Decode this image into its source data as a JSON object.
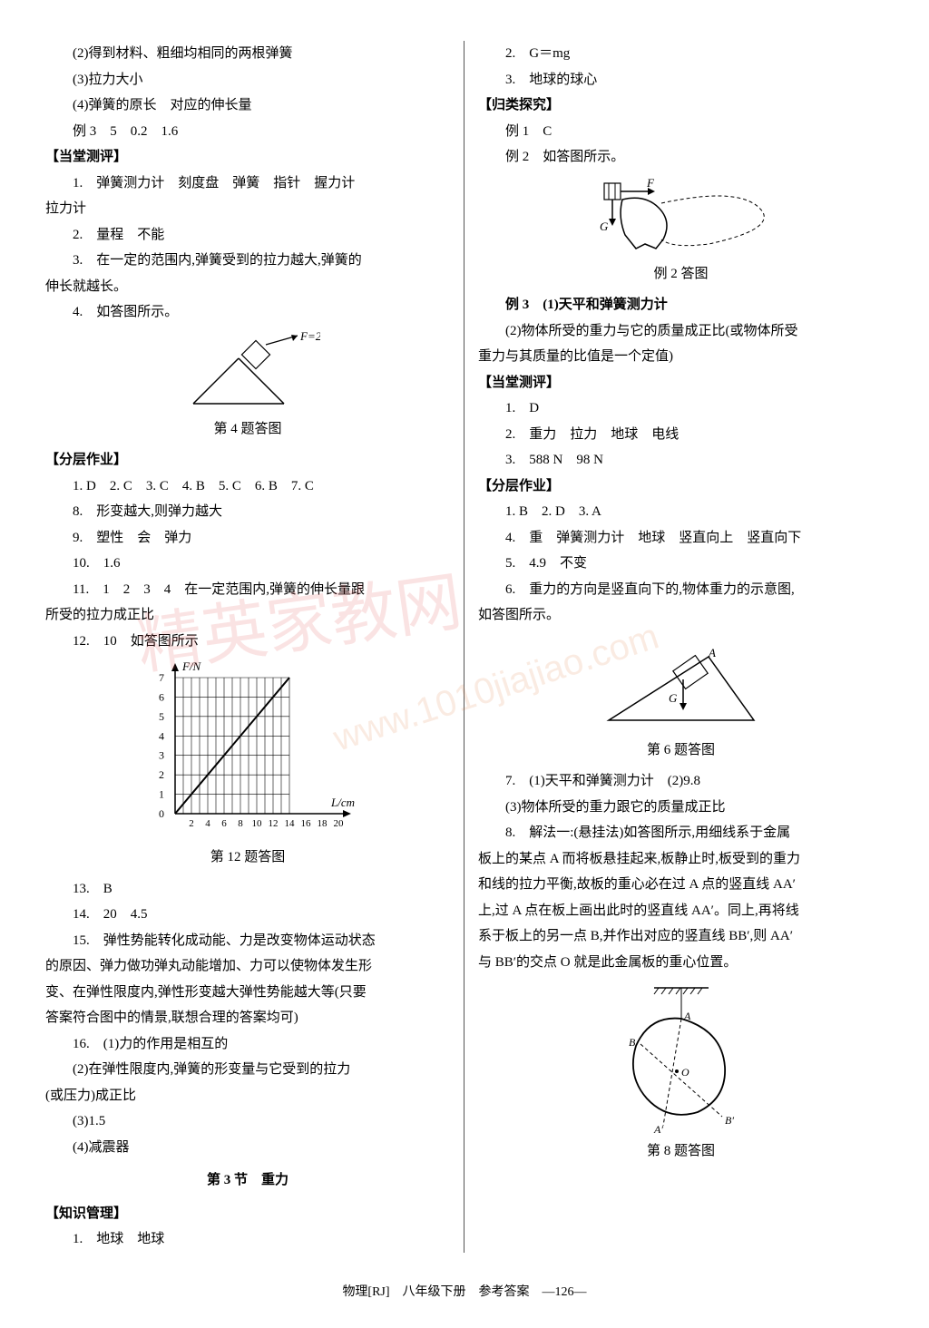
{
  "left": {
    "l1": "(2)得到材料、粗细均相同的两根弹簧",
    "l2": "(3)拉力大小",
    "l3": "(4)弹簧的原长　对应的伸长量",
    "l4": "例 3　5　0.2　1.6",
    "h1": "【当堂测评】",
    "l5": "1.　弹簧测力计　刻度盘　弹簧　指针　握力计",
    "l6": "拉力计",
    "l7": "2.　量程　不能",
    "l8": "3.　在一定的范围内,弹簧受到的拉力越大,弹簧的",
    "l9": "伸长就越长。",
    "l10": "4.　如答图所示。",
    "fig4_label": "F=20 N",
    "fig4_cap": "第 4 题答图",
    "h2": "【分层作业】",
    "l11": "1. D　2. C　3. C　4. B　5. C　6. B　7. C",
    "l12": "8.　形变越大,则弹力越大",
    "l13": "9.　塑性　会　弹力",
    "l14": "10.　1.6",
    "l15": "11.　1　2　3　4　在一定范围内,弹簧的伸长量跟",
    "l16": "所受的拉力成正比",
    "l17": "12.　10　如答图所示",
    "chart12": {
      "ylabel": "F/N",
      "xlabel": "L/cm",
      "y_ticks": [
        0,
        1,
        2,
        3,
        4,
        5,
        6,
        7
      ],
      "x_ticks": [
        2,
        4,
        6,
        8,
        10,
        12,
        14,
        16,
        18,
        20
      ],
      "line_start": [
        0,
        0
      ],
      "line_end": [
        14,
        7
      ],
      "grid_color": "#000",
      "axis_color": "#000",
      "line_color": "#000"
    },
    "fig12_cap": "第 12 题答图",
    "l18": "13.　B",
    "l19": "14.　20　4.5",
    "l20": "15.　弹性势能转化成动能、力是改变物体运动状态",
    "l21": "的原因、弹力做功弹丸动能增加、力可以使物体发生形",
    "l22": "变、在弹性限度内,弹性形变越大弹性势能越大等(只要",
    "l23": "答案符合图中的情景,联想合理的答案均可)",
    "l24": "16.　(1)力的作用是相互的",
    "l25": "(2)在弹性限度内,弹簧的形变量与它受到的拉力",
    "l26": "(或压力)成正比",
    "l27": "(3)1.5",
    "l28": "(4)减震器",
    "sec_title": "第 3 节　重力",
    "h3": "【知识管理】",
    "l29": "1.　地球　地球"
  },
  "right": {
    "r1": "2.　G＝mg",
    "r2": "3.　地球的球心",
    "h4": "【归类探究】",
    "r3": "例 1　C",
    "r4": "例 2　如答图所示。",
    "figex2_cap": "例 2 答图",
    "figex2_F": "F",
    "figex2_G": "G",
    "r5": "例 3　(1)天平和弹簧测力计",
    "r6": "(2)物体所受的重力与它的质量成正比(或物体所受",
    "r7": "重力与其质量的比值是一个定值)",
    "h5": "【当堂测评】",
    "r8": "1.　D",
    "r9": "2.　重力　拉力　地球　电线",
    "r10": "3.　588 N　98 N",
    "h6": "【分层作业】",
    "r11": "1. B　2. D　3. A",
    "r12": "4.　重　弹簧测力计　地球　竖直向上　竖直向下",
    "r13": "5.　4.9　不变",
    "r14": "6.　重力的方向是竖直向下的,物体重力的示意图,",
    "r15": "如答图所示。",
    "fig6_A": "A",
    "fig6_G": "G",
    "fig6_cap": "第 6 题答图",
    "r16": "7.　(1)天平和弹簧测力计　(2)9.8",
    "r17": "(3)物体所受的重力跟它的质量成正比",
    "r18": "8.　解法一:(悬挂法)如答图所示,用细线系于金属",
    "r19": "板上的某点 A 而将板悬挂起来,板静止时,板受到的重力",
    "r20": "和线的拉力平衡,故板的重心必在过 A 点的竖直线 AA′",
    "r21": "上,过 A 点在板上画出此时的竖直线 AA′。同上,再将线",
    "r22": "系于板上的另一点 B,并作出对应的竖直线 BB′,则 AA′",
    "r23": "与 BB′的交点 O 就是此金属板的重心位置。",
    "fig8_cap": "第 8 题答图",
    "fig8_A": "A",
    "fig8_B": "B",
    "fig8_O": "O",
    "fig8_Ap": "A′",
    "fig8_Bp": "B′"
  },
  "footer": "物理[RJ]　八年级下册　参考答案　—126—",
  "watermark": "精英家教网",
  "watermark2": "www.1010jiajiao.com"
}
